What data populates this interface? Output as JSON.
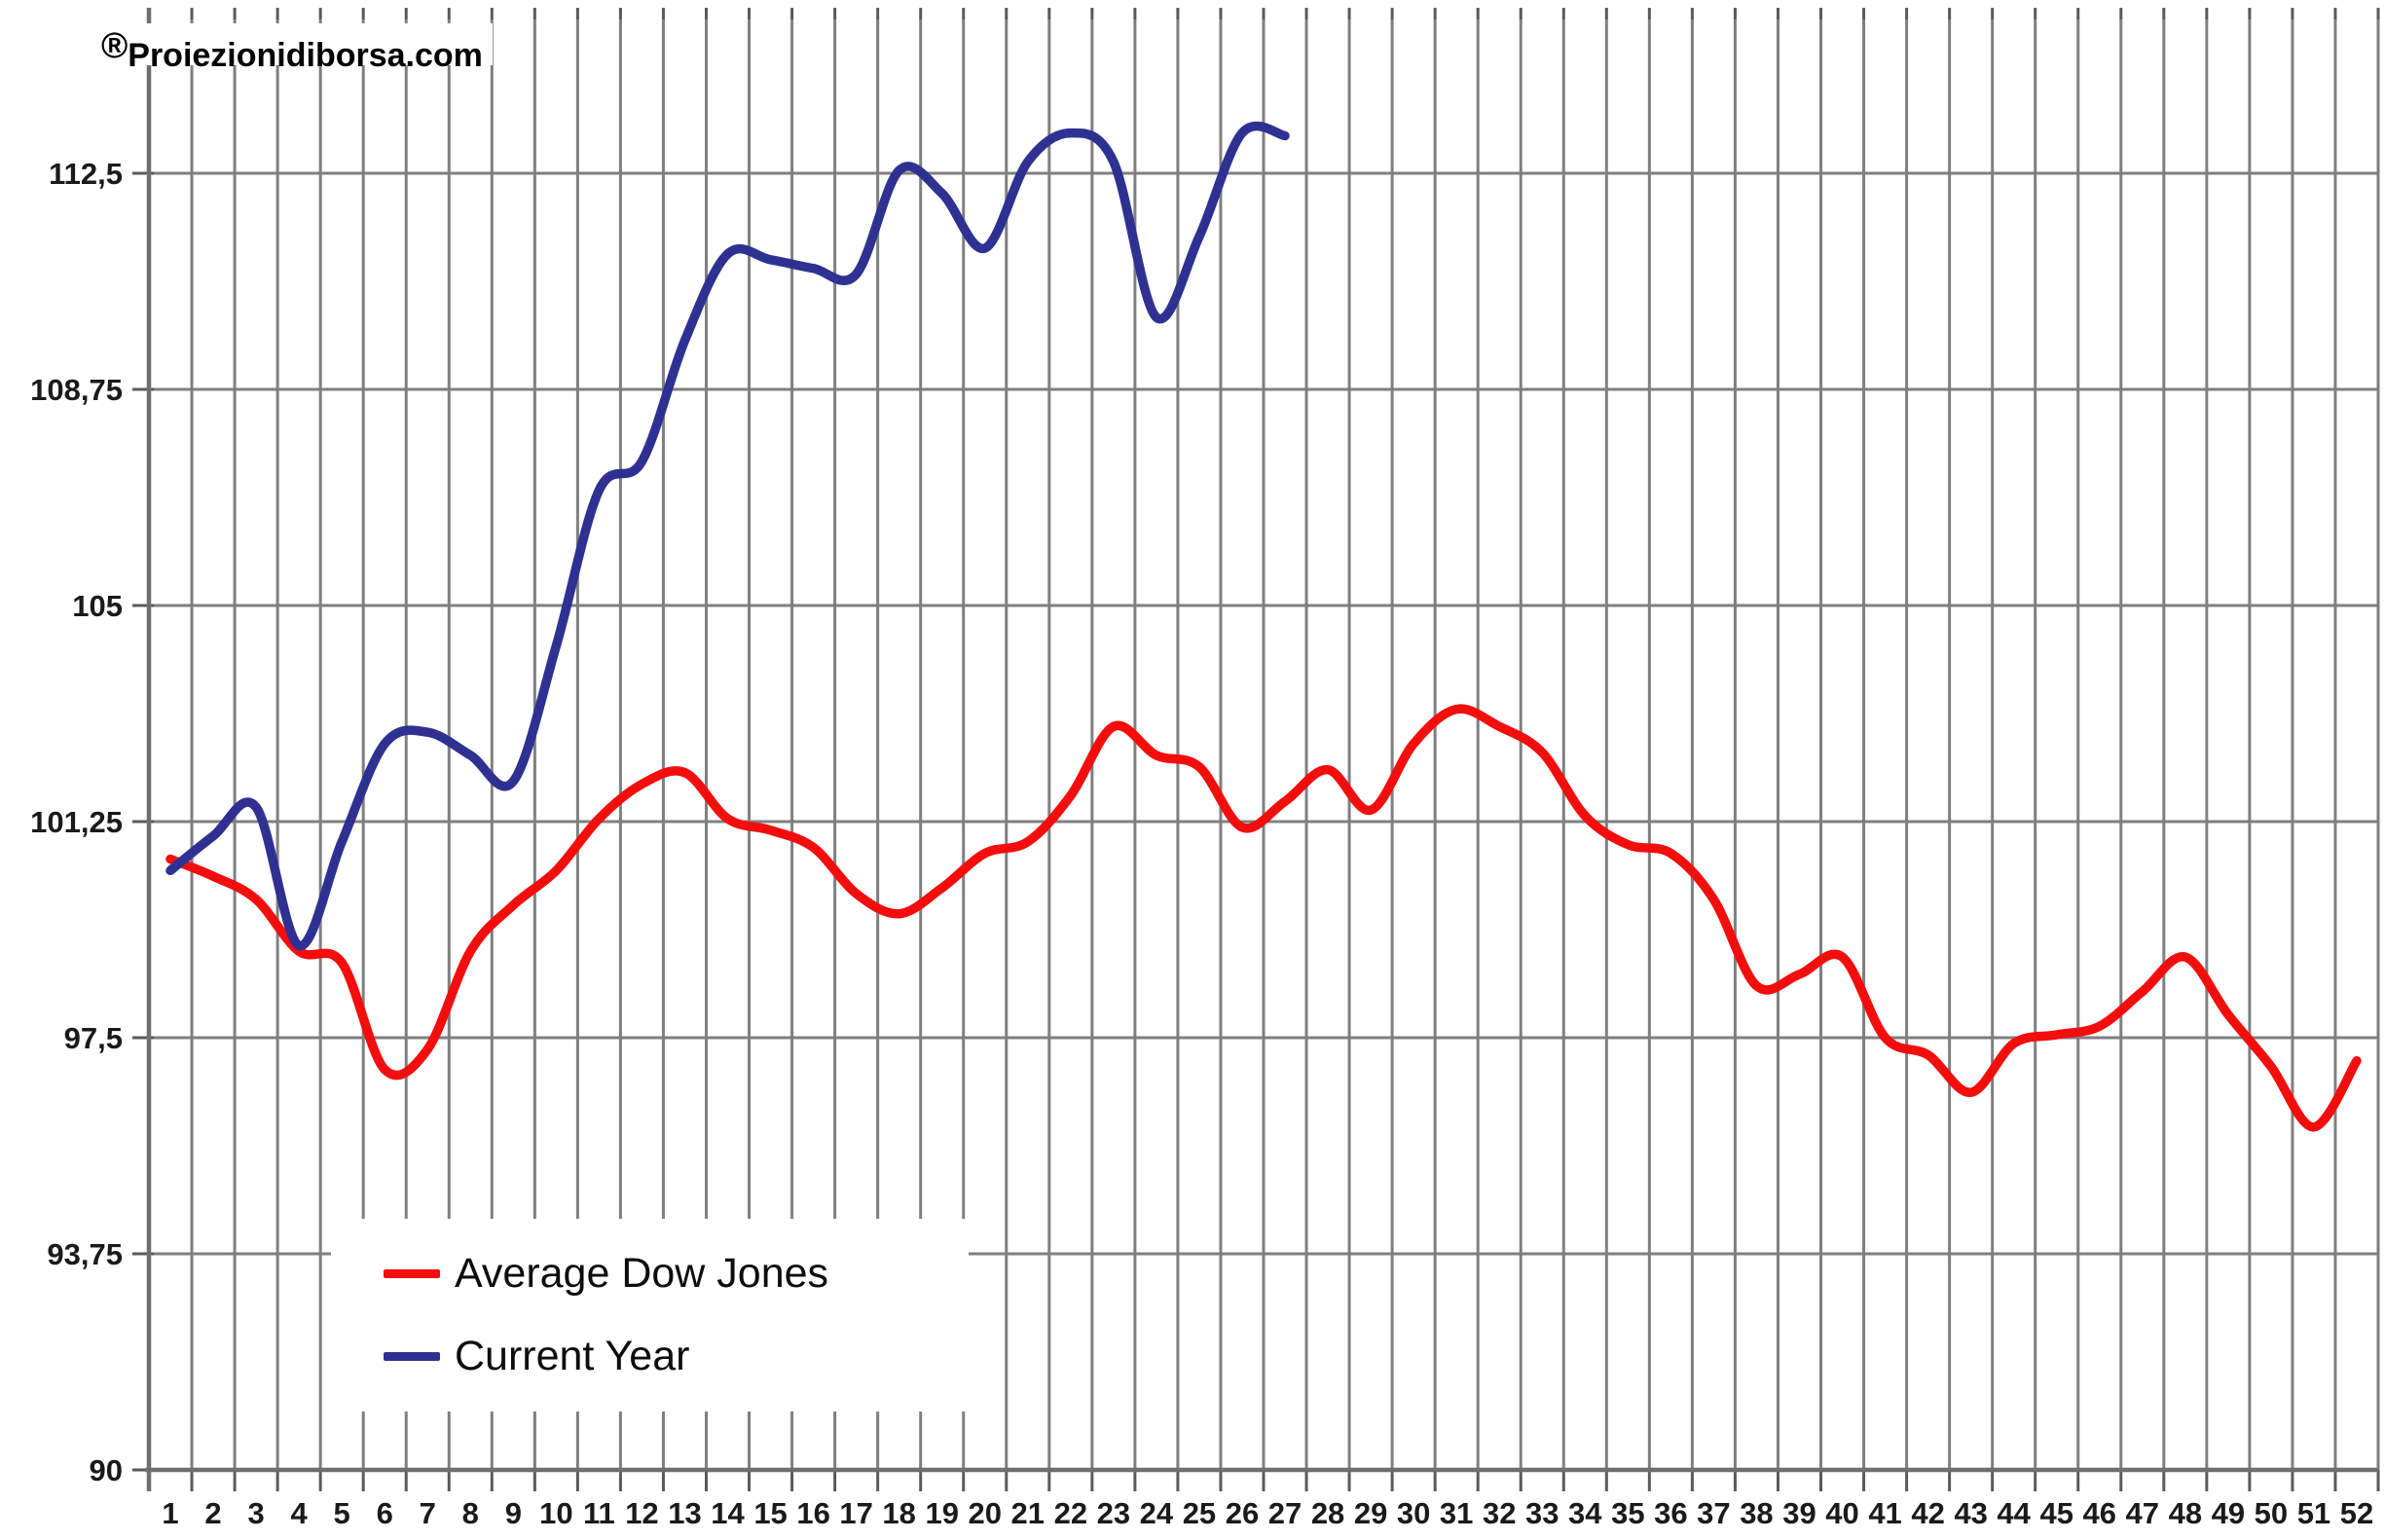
{
  "watermark": {
    "mark": "®",
    "brand": "Proiezionidiborsa.com"
  },
  "legend": {
    "items": [
      {
        "label": "Average Dow Jones",
        "color": "#f40d0d"
      },
      {
        "label": "Current Year",
        "color": "#2f3192"
      }
    ]
  },
  "chart_data": {
    "type": "line",
    "title": "",
    "xlabel": "",
    "ylabel": "",
    "x_unit": "week",
    "categories": [
      "1",
      "2",
      "3",
      "4",
      "5",
      "6",
      "7",
      "8",
      "9",
      "10",
      "11",
      "12",
      "13",
      "14",
      "15",
      "16",
      "17",
      "18",
      "19",
      "20",
      "21",
      "22",
      "23",
      "24",
      "25",
      "26",
      "27",
      "28",
      "29",
      "30",
      "31",
      "32",
      "33",
      "34",
      "35",
      "36",
      "37",
      "38",
      "39",
      "40",
      "41",
      "42",
      "43",
      "44",
      "45",
      "46",
      "47",
      "48",
      "49",
      "50",
      "51",
      "52"
    ],
    "y_ticks": [
      {
        "label": "112,5",
        "value": 112.5
      },
      {
        "label": "108,75",
        "value": 108.75
      },
      {
        "label": "105",
        "value": 105
      },
      {
        "label": "101,25",
        "value": 101.25
      },
      {
        "label": "97,5",
        "value": 97.5
      },
      {
        "label": "93,75",
        "value": 93.75
      },
      {
        "label": "90",
        "value": 90
      }
    ],
    "ylim": [
      90,
      115.2
    ],
    "grid": {
      "vertical": true,
      "horizontal": true,
      "color": "#7f7f7f"
    },
    "legend_position": "inside-bottom-left",
    "series": [
      {
        "name": "Average Dow Jones",
        "color": "#f40d0d",
        "values": [
          100.6,
          100.3,
          99.9,
          99.0,
          98.8,
          96.95,
          97.3,
          99.0,
          99.8,
          100.4,
          101.3,
          101.9,
          102.1,
          101.3,
          101.1,
          100.8,
          100.0,
          99.65,
          100.1,
          100.7,
          100.9,
          101.7,
          102.9,
          102.4,
          102.2,
          101.15,
          101.6,
          102.15,
          101.45,
          102.6,
          103.2,
          102.9,
          102.45,
          101.35,
          100.85,
          100.7,
          99.9,
          98.4,
          98.6,
          98.9,
          97.5,
          97.2,
          96.55,
          97.4,
          97.55,
          97.7,
          98.3,
          98.9,
          97.9,
          97.0,
          95.95,
          97.1
        ]
      },
      {
        "name": "Current Year",
        "color": "#2f3192",
        "values": [
          100.4,
          101.0,
          101.5,
          99.1,
          100.9,
          102.6,
          102.8,
          102.4,
          101.95,
          104.3,
          107.0,
          107.5,
          109.6,
          111.1,
          111.0,
          110.85,
          110.75,
          112.55,
          112.15,
          111.2,
          112.7,
          113.2,
          112.7,
          110.0,
          111.4,
          113.2,
          113.15,
          null,
          null,
          null,
          null,
          null,
          null,
          null,
          null,
          null,
          null,
          null,
          null,
          null,
          null,
          null,
          null,
          null,
          null,
          null,
          null,
          null,
          null,
          null,
          null,
          null
        ]
      }
    ]
  }
}
